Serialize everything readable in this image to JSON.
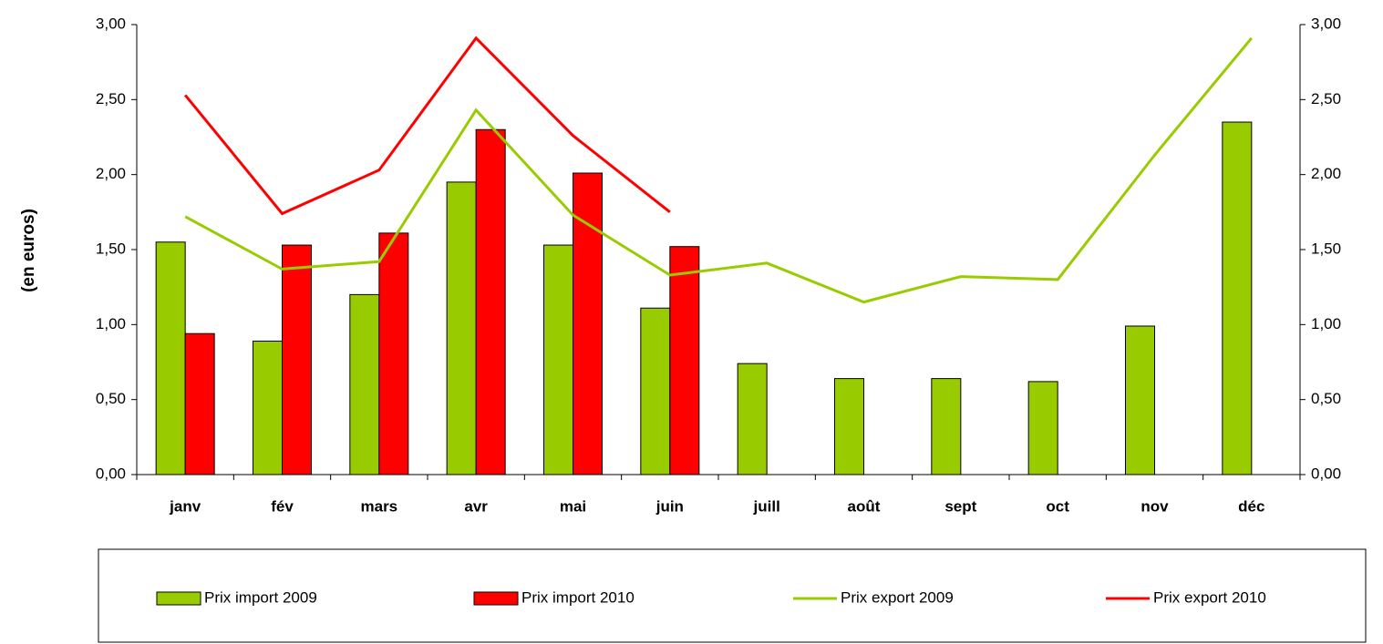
{
  "chart_data": {
    "type": "bar",
    "y_label": "(en euros)",
    "categories": [
      "janv",
      "fév",
      "mars",
      "avr",
      "mai",
      "juin",
      "juill",
      "août",
      "sept",
      "oct",
      "nov",
      "déc"
    ],
    "series": [
      {
        "name": "Prix import 2009",
        "type": "bar",
        "color": "#99cc00",
        "values": [
          1.55,
          0.89,
          1.2,
          1.95,
          1.53,
          1.11,
          0.74,
          0.64,
          0.64,
          0.62,
          0.99,
          2.35
        ]
      },
      {
        "name": "Prix import 2010",
        "type": "bar",
        "color": "#ff0000",
        "values": [
          0.94,
          1.53,
          1.61,
          2.3,
          2.01,
          1.52,
          null,
          null,
          null,
          null,
          null,
          null
        ]
      },
      {
        "name": "Prix export 2009",
        "type": "line",
        "axis": "y2",
        "color": "#99cc00",
        "values": [
          1.72,
          1.37,
          1.42,
          2.43,
          1.73,
          1.33,
          1.41,
          1.15,
          1.32,
          1.3,
          2.13,
          2.91
        ]
      },
      {
        "name": "Prix export 2010",
        "type": "line",
        "axis": "y2",
        "color": "#ff0000",
        "values": [
          2.53,
          1.74,
          2.03,
          2.91,
          2.26,
          1.75,
          null,
          null,
          null,
          null,
          null,
          null
        ]
      }
    ],
    "ylim": [
      0,
      3
    ],
    "yticks": [
      {
        "value": 0,
        "label": "0,00"
      },
      {
        "value": 0.5,
        "label": "0,50"
      },
      {
        "value": 1,
        "label": "1,00"
      },
      {
        "value": 1.5,
        "label": "1,50"
      },
      {
        "value": 2,
        "label": "2,00"
      },
      {
        "value": 2.5,
        "label": "2,50"
      },
      {
        "value": 3,
        "label": "3,00"
      }
    ],
    "y2lim": [
      0,
      3
    ],
    "y2ticks": [
      {
        "value": 0,
        "label": "0,00"
      },
      {
        "value": 0.5,
        "label": "0,50"
      },
      {
        "value": 1,
        "label": "1,00"
      },
      {
        "value": 1.5,
        "label": "1,50"
      },
      {
        "value": 2,
        "label": "2,00"
      },
      {
        "value": 2.5,
        "label": "2,50"
      },
      {
        "value": 3,
        "label": "3,00"
      }
    ],
    "grid": false,
    "legend": "bottom"
  }
}
